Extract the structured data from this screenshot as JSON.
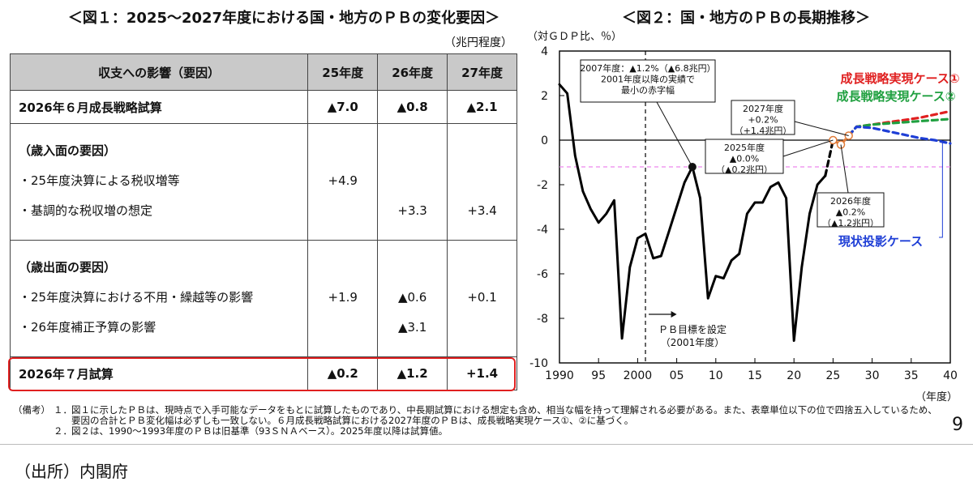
{
  "fig1": {
    "title": "＜図１：2025～2027年度における国・地方のＰＢの変化要因＞",
    "unit": "（兆円程度）",
    "headers": [
      "収支への影響（要因）",
      "25年度",
      "26年度",
      "27年度"
    ],
    "june": {
      "label": "2026年６月成長戦略試算",
      "v": [
        "▲7.0",
        "▲0.8",
        "▲2.1"
      ]
    },
    "rev": {
      "heading": "（歳入面の要因）",
      "items": [
        {
          "label": "・25年度決算による税収増等",
          "v": [
            "+4.9",
            "",
            ""
          ]
        },
        {
          "label": "・基調的な税収増の想定",
          "v": [
            "",
            "+3.3",
            "+3.4"
          ]
        }
      ]
    },
    "exp": {
      "heading": "（歳出面の要因）",
      "items": [
        {
          "label": "・25年度決算における不用・繰越等の影響",
          "v": [
            "+1.9",
            "▲0.6",
            "+0.1"
          ]
        },
        {
          "label": "・26年度補正予算の影響",
          "v": [
            "",
            "▲3.1",
            ""
          ]
        }
      ]
    },
    "july": {
      "label": "2026年７月試算",
      "v": [
        "▲0.2",
        "▲1.2",
        "+1.4"
      ]
    }
  },
  "fig2": {
    "title": "＜図２：国・地方のＰＢの長期推移＞",
    "ylabel": "（対ＧＤＰ比、％）",
    "xlabel": "（年度）"
  },
  "chart_data": {
    "type": "line",
    "title": "＜図２：国・地方のＰＢの長期推移＞",
    "xlabel": "（年度）",
    "ylabel": "（対ＧＤＰ比、％）",
    "xlim": [
      1990,
      2040
    ],
    "ylim": [
      -10,
      4
    ],
    "x_ticks": [
      1990,
      1995,
      2000,
      2005,
      2010,
      2015,
      2020,
      2025,
      2030,
      2035,
      2040
    ],
    "x_tick_labels": [
      "1990",
      "95",
      "2000",
      "05",
      "10",
      "15",
      "20",
      "25",
      "30",
      "35",
      "40"
    ],
    "y_ticks": [
      4,
      2,
      0,
      -2,
      -4,
      -6,
      -8,
      -10
    ],
    "grid": false,
    "series": [
      {
        "role": "actual",
        "color": "#000000",
        "style": "solid",
        "x": [
          1990,
          1991,
          1992,
          1993,
          1994,
          1995,
          1996,
          1997,
          1998,
          1999,
          2000,
          2001,
          2002,
          2003,
          2004,
          2005,
          2006,
          2007,
          2008,
          2009,
          2010,
          2011,
          2012,
          2013,
          2014,
          2015,
          2016,
          2017,
          2018,
          2019,
          2020,
          2021,
          2022,
          2023,
          2024
        ],
        "y": [
          2.5,
          2.1,
          -0.7,
          -2.3,
          -3.1,
          -3.7,
          -3.3,
          -2.7,
          -8.9,
          -5.7,
          -4.4,
          -4.2,
          -5.3,
          -5.2,
          -4.1,
          -3.0,
          -1.9,
          -1.2,
          -2.6,
          -7.1,
          -6.1,
          -6.2,
          -5.4,
          -5.1,
          -3.3,
          -2.8,
          -2.8,
          -2.1,
          -1.9,
          -2.6,
          -9.0,
          -5.7,
          -3.3,
          -2.0,
          -1.6
        ]
      },
      {
        "role": "estimate-link",
        "color": "#000000",
        "style": "dashed",
        "x": [
          2024,
          2025
        ],
        "y": [
          -1.6,
          0.0
        ]
      },
      {
        "role": "estimate",
        "color": "#e07b39",
        "style": "dashed",
        "x": [
          2025,
          2026,
          2027
        ],
        "y": [
          0.0,
          -0.2,
          0.2
        ]
      },
      {
        "name": "成長戦略実現ケース①",
        "color": "#e02020",
        "style": "dashed",
        "x": [
          2027,
          2028,
          2030,
          2032,
          2034,
          2036,
          2038,
          2040
        ],
        "y": [
          0.2,
          0.6,
          0.7,
          0.8,
          0.9,
          1.0,
          1.15,
          1.3
        ]
      },
      {
        "name": "成長戦略実現ケース②",
        "color": "#20a040",
        "style": "dashed",
        "x": [
          2027,
          2028,
          2030,
          2032,
          2034,
          2036,
          2038,
          2040
        ],
        "y": [
          0.2,
          0.6,
          0.7,
          0.75,
          0.8,
          0.85,
          0.9,
          0.95
        ]
      },
      {
        "name": "現状投影ケース",
        "color": "#1f3fd6",
        "style": "dashed",
        "x": [
          2027,
          2028,
          2030,
          2032,
          2034,
          2036,
          2038,
          2040
        ],
        "y": [
          0.2,
          0.6,
          0.55,
          0.4,
          0.25,
          0.1,
          0.0,
          -0.15
        ]
      }
    ],
    "reference_lines": [
      {
        "orientation": "horizontal",
        "y": 0,
        "color": "#000000",
        "style": "solid"
      },
      {
        "orientation": "horizontal",
        "y": -1.2,
        "color": "#ee88ee",
        "style": "dashed"
      },
      {
        "orientation": "vertical",
        "x": 2001,
        "color": "#000000",
        "style": "dashed"
      }
    ],
    "annotations": [
      {
        "lines": [
          "2007年度：▲1.2%（▲6.8兆円）",
          "2001年度以降の実績で",
          "最小の赤字幅"
        ],
        "x": 2007,
        "y": -1.2
      },
      {
        "lines": [
          "2027年度",
          "+0.2%",
          "（+1.4兆円）"
        ],
        "x": 2027,
        "y": 0.2
      },
      {
        "lines": [
          "2025年度",
          "▲0.0%",
          "（▲0.2兆円）"
        ],
        "x": 2025,
        "y": 0.0
      },
      {
        "lines": [
          "2026年度",
          "▲0.2%",
          "（▲1.2兆円）"
        ],
        "x": 2026,
        "y": -0.2
      },
      {
        "lines": [
          "ＰＢ目標を設定",
          "（2001年度）"
        ],
        "x": 2001,
        "y": -8
      }
    ]
  },
  "notes": {
    "tag": "（備考）",
    "items": [
      {
        "num": "１．",
        "text": "図１に示したＰＢは、現時点で入手可能なデータをもとに試算したものであり、中長期試算における想定も含め、相当な幅を持って理解される必要がある。また、表章単位以下の位で四捨五入しているため、要因の合計とＰＢ変化幅は必ずしも一致しない。６月成長戦略試算における2027年度のＰＢは、成長戦略実現ケース①、②に基づく。"
      },
      {
        "num": "２．",
        "text": "図２は、1990～1993年度のＰＢは旧基準（93ＳＮＡベース）。2025年度以降は試算値。"
      }
    ]
  },
  "page_number": "9",
  "source": "（出所）内閣府"
}
